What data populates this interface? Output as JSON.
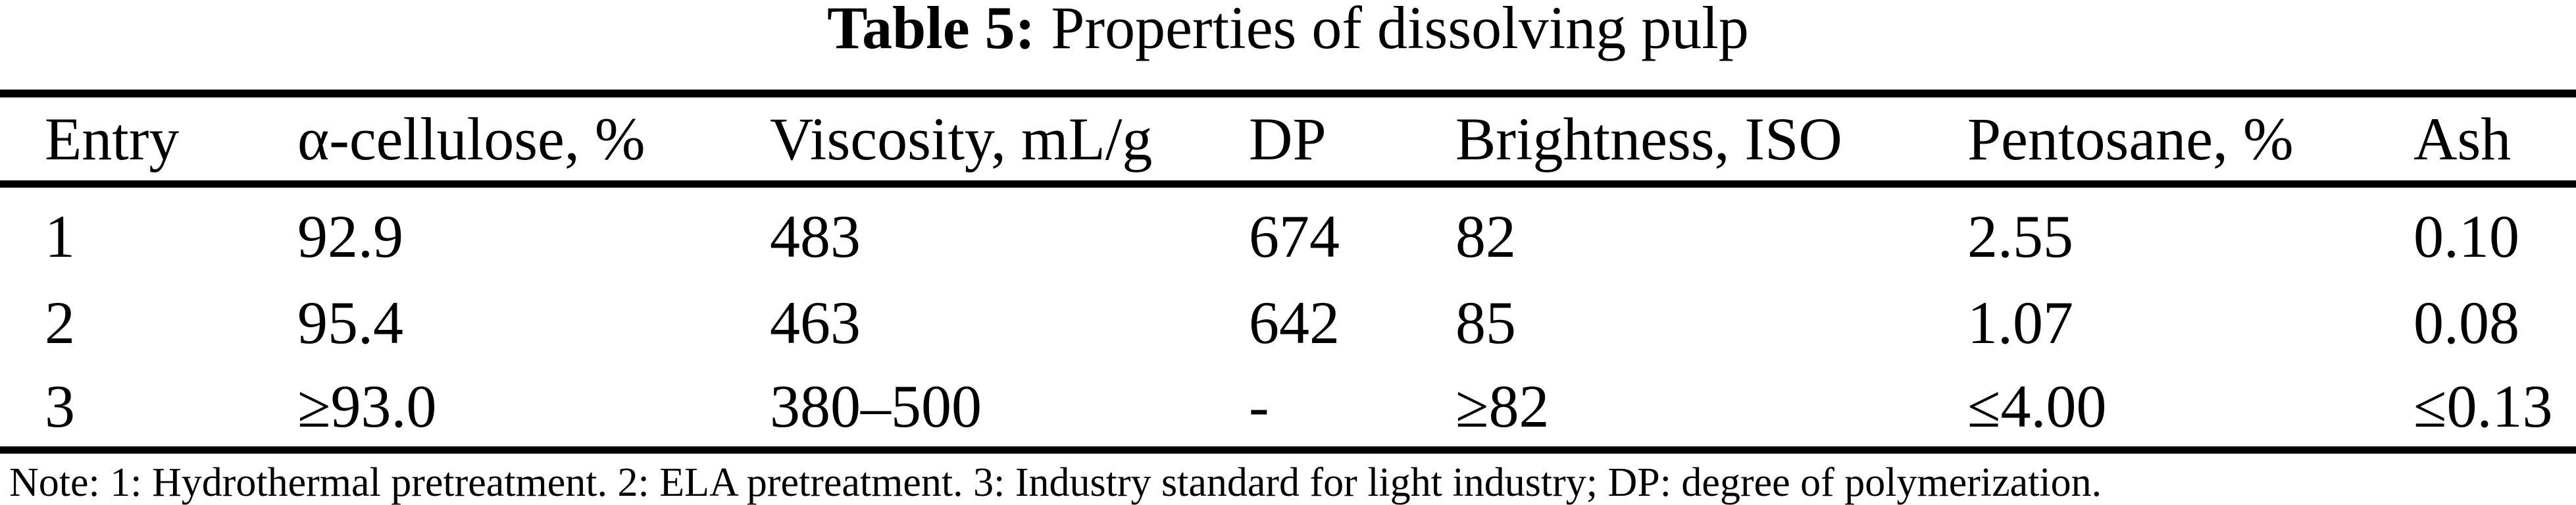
{
  "page": {
    "background": "#ffffff",
    "text_color": "#000000",
    "rule_color": "#000000"
  },
  "title": {
    "label": "Table 5:",
    "text": "Properties of dissolving pulp"
  },
  "table": {
    "columns": [
      "Entry",
      "α-cellulose, %",
      "Viscosity, mL/g",
      "DP",
      "Brightness, ISO",
      "Pentosane, %",
      "Ash"
    ],
    "rows": [
      [
        "1",
        "92.9",
        "483",
        "674",
        "82",
        "2.55",
        "0.10"
      ],
      [
        "2",
        "95.4",
        "463",
        "642",
        "85",
        "1.07",
        "0.08"
      ],
      [
        "3",
        "≥93.0",
        "380–500",
        "-",
        "≥82",
        "≤4.00",
        "≤0.13"
      ]
    ]
  },
  "note": "Note: 1: Hydrothermal pretreatment. 2: ELA pretreatment. 3: Industry standard for light industry; DP: degree of polymerization."
}
